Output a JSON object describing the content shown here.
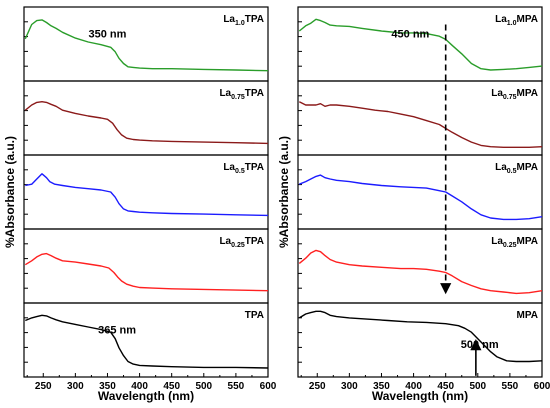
{
  "chart_data": [
    {
      "type": "line",
      "xlabel": "Wavelength (nm)",
      "ylabel": "%Absorbance (a.u.)",
      "xlim": [
        220,
        600
      ],
      "xticks": [
        250,
        300,
        350,
        400,
        450,
        500,
        550,
        600
      ],
      "ylim": [
        0,
        1
      ],
      "panels": [
        {
          "label": {
            "base": "La",
            "sub": "1.0",
            "rest": "TPA"
          },
          "color": "#2a9d2a",
          "annotations": [
            {
              "text": "350 nm",
              "x": 350,
              "y": 0.6
            }
          ],
          "x": [
            222,
            232,
            240,
            248,
            255,
            262,
            270,
            280,
            300,
            320,
            340,
            355,
            362,
            368,
            375,
            382,
            390,
            400,
            420,
            450,
            500,
            550,
            600
          ],
          "y": [
            0.58,
            0.8,
            0.86,
            0.87,
            0.83,
            0.78,
            0.74,
            0.68,
            0.59,
            0.53,
            0.49,
            0.45,
            0.38,
            0.28,
            0.2,
            0.15,
            0.14,
            0.13,
            0.12,
            0.12,
            0.11,
            0.1,
            0.09
          ]
        },
        {
          "label": {
            "base": "La",
            "sub": "0.75",
            "rest": "TPA"
          },
          "color": "#8b1a1a",
          "annotations": [],
          "x": [
            222,
            232,
            240,
            248,
            255,
            262,
            270,
            280,
            300,
            320,
            340,
            350,
            358,
            365,
            372,
            380,
            390,
            400,
            420,
            450,
            500,
            550,
            600
          ],
          "y": [
            0.62,
            0.7,
            0.74,
            0.75,
            0.74,
            0.71,
            0.68,
            0.62,
            0.57,
            0.53,
            0.5,
            0.48,
            0.42,
            0.32,
            0.24,
            0.19,
            0.17,
            0.16,
            0.15,
            0.14,
            0.13,
            0.12,
            0.11
          ]
        },
        {
          "label": {
            "base": "La",
            "sub": "0.5",
            "rest": "TPA"
          },
          "color": "#1c1cff",
          "annotations": [],
          "x": [
            222,
            232,
            240,
            248,
            255,
            260,
            268,
            280,
            300,
            320,
            340,
            355,
            362,
            368,
            375,
            382,
            390,
            400,
            420,
            450,
            500,
            550,
            600
          ],
          "y": [
            0.6,
            0.62,
            0.7,
            0.78,
            0.72,
            0.66,
            0.62,
            0.6,
            0.57,
            0.55,
            0.53,
            0.5,
            0.42,
            0.32,
            0.24,
            0.21,
            0.2,
            0.19,
            0.18,
            0.17,
            0.16,
            0.15,
            0.14
          ]
        },
        {
          "label": {
            "base": "La",
            "sub": "0.25",
            "rest": "TPA"
          },
          "color": "#ff2020",
          "annotations": [],
          "x": [
            222,
            232,
            240,
            248,
            255,
            262,
            270,
            280,
            300,
            320,
            340,
            352,
            360,
            366,
            372,
            380,
            390,
            400,
            420,
            450,
            500,
            550,
            600
          ],
          "y": [
            0.52,
            0.58,
            0.64,
            0.68,
            0.69,
            0.66,
            0.62,
            0.58,
            0.56,
            0.53,
            0.5,
            0.47,
            0.4,
            0.33,
            0.27,
            0.22,
            0.19,
            0.17,
            0.16,
            0.15,
            0.14,
            0.13,
            0.12
          ]
        },
        {
          "label": {
            "base": "",
            "sub": "",
            "rest": "TPA"
          },
          "color": "#000000",
          "annotations": [
            {
              "text": "365 nm",
              "x": 365,
              "y": 0.6
            }
          ],
          "x": [
            222,
            232,
            240,
            248,
            255,
            262,
            270,
            280,
            300,
            320,
            340,
            355,
            362,
            368,
            375,
            382,
            390,
            400,
            420,
            450,
            500,
            550,
            600
          ],
          "y": [
            0.8,
            0.84,
            0.86,
            0.88,
            0.87,
            0.84,
            0.81,
            0.78,
            0.74,
            0.7,
            0.66,
            0.62,
            0.52,
            0.38,
            0.26,
            0.17,
            0.13,
            0.11,
            0.1,
            0.09,
            0.08,
            0.08,
            0.07
          ]
        }
      ]
    },
    {
      "type": "line",
      "xlabel": "Wavelength (nm)",
      "ylabel": "%Absorbance (a.u.)",
      "xlim": [
        220,
        600
      ],
      "xticks": [
        250,
        300,
        350,
        400,
        450,
        500,
        550,
        600
      ],
      "ylim": [
        0,
        1
      ],
      "panels": [
        {
          "label": {
            "base": "La",
            "sub": "1.0",
            "rest": "MPA"
          },
          "color": "#2a9d2a",
          "annotations": [
            {
              "text": "450 nm",
              "x": 395,
              "y": 0.6
            }
          ],
          "x": [
            222,
            232,
            240,
            248,
            255,
            262,
            270,
            280,
            300,
            320,
            350,
            380,
            400,
            420,
            440,
            450,
            460,
            475,
            490,
            505,
            520,
            540,
            560,
            580,
            600
          ],
          "y": [
            0.7,
            0.78,
            0.82,
            0.88,
            0.86,
            0.83,
            0.79,
            0.78,
            0.77,
            0.74,
            0.7,
            0.67,
            0.67,
            0.66,
            0.62,
            0.57,
            0.48,
            0.35,
            0.2,
            0.12,
            0.1,
            0.11,
            0.12,
            0.14,
            0.16
          ]
        },
        {
          "label": {
            "base": "La",
            "sub": "0.75",
            "rest": "MPA"
          },
          "color": "#8b1a1a",
          "annotations": [],
          "x": [
            222,
            232,
            240,
            248,
            255,
            262,
            270,
            280,
            300,
            320,
            340,
            360,
            380,
            400,
            420,
            440,
            460,
            475,
            490,
            505,
            520,
            540,
            560,
            580,
            600
          ],
          "y": [
            0.75,
            0.7,
            0.7,
            0.7,
            0.72,
            0.68,
            0.7,
            0.7,
            0.68,
            0.65,
            0.62,
            0.6,
            0.56,
            0.52,
            0.46,
            0.4,
            0.28,
            0.2,
            0.13,
            0.08,
            0.06,
            0.05,
            0.05,
            0.05,
            0.06
          ]
        },
        {
          "label": {
            "base": "La",
            "sub": "0.5",
            "rest": "MPA"
          },
          "color": "#1c1cff",
          "annotations": [],
          "x": [
            222,
            232,
            240,
            248,
            255,
            262,
            270,
            280,
            300,
            320,
            350,
            380,
            400,
            420,
            440,
            450,
            460,
            475,
            490,
            505,
            520,
            540,
            560,
            580,
            600
          ],
          "y": [
            0.62,
            0.66,
            0.7,
            0.74,
            0.76,
            0.72,
            0.7,
            0.68,
            0.66,
            0.63,
            0.6,
            0.58,
            0.57,
            0.56,
            0.52,
            0.5,
            0.44,
            0.35,
            0.24,
            0.15,
            0.1,
            0.08,
            0.08,
            0.09,
            0.12
          ]
        },
        {
          "label": {
            "base": "La",
            "sub": "0.25",
            "rest": "MPA"
          },
          "color": "#ff2020",
          "annotations": [],
          "x": [
            222,
            232,
            240,
            248,
            255,
            262,
            270,
            280,
            300,
            320,
            350,
            380,
            400,
            420,
            440,
            450,
            460,
            475,
            490,
            505,
            520,
            540,
            560,
            580,
            600
          ],
          "y": [
            0.54,
            0.62,
            0.7,
            0.74,
            0.72,
            0.66,
            0.6,
            0.56,
            0.52,
            0.5,
            0.48,
            0.46,
            0.46,
            0.45,
            0.42,
            0.4,
            0.35,
            0.26,
            0.2,
            0.15,
            0.12,
            0.1,
            0.08,
            0.09,
            0.12
          ]
        },
        {
          "label": {
            "base": "",
            "sub": "",
            "rest": "MPA"
          },
          "color": "#000000",
          "annotations": [
            {
              "text": "500 nm",
              "x": 503,
              "y": 0.38
            }
          ],
          "x": [
            222,
            232,
            240,
            248,
            255,
            262,
            270,
            280,
            300,
            330,
            360,
            390,
            420,
            450,
            470,
            480,
            490,
            500,
            510,
            520,
            530,
            545,
            560,
            580,
            600
          ],
          "y": [
            0.84,
            0.9,
            0.92,
            0.94,
            0.94,
            0.92,
            0.88,
            0.86,
            0.84,
            0.82,
            0.8,
            0.78,
            0.77,
            0.75,
            0.72,
            0.68,
            0.62,
            0.52,
            0.42,
            0.32,
            0.24,
            0.18,
            0.17,
            0.17,
            0.18
          ]
        }
      ],
      "arrows": [
        {
          "style": "dashed",
          "x": 450,
          "from_panel": 0,
          "from_y": 0.8,
          "to_panel": 3,
          "to_y": 0.1
        },
        {
          "style": "solid",
          "x": 497,
          "from_panel": 4,
          "from_y": -0.05,
          "to_panel": 4,
          "to_y": 0.48
        }
      ]
    }
  ]
}
